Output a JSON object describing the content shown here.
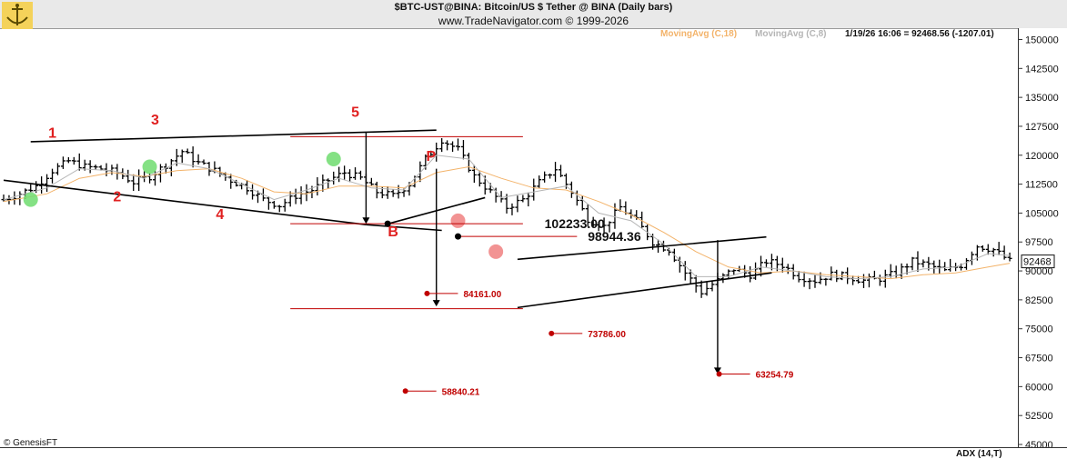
{
  "header": {
    "title": "$BTC-UST@BINA:  Bitcoin/US $ Tether @ BINA  (Daily bars)",
    "subtitle": "www.TradeNavigator.com © 1999-2026"
  },
  "legend": {
    "ma18": "MovingAvg (C,18)",
    "ma8": "MovingAvg (C,8)",
    "last_info": "1/19/26 16:06 = 92468.56 (-1207.01)"
  },
  "footer": {
    "copyright": "© GenesisFT",
    "indicator": "ADX (14,T)"
  },
  "colors": {
    "price_bars": "#000000",
    "ma18": "#f3b36a",
    "ma8": "#b5b5b5",
    "targets": "#c00000",
    "wave_labels": "#e02020",
    "buy_dot": "#6fdc6f",
    "sell_dot": "#f08080"
  },
  "chart_data": {
    "type": "ohlc",
    "ylim": [
      45000,
      152000
    ],
    "y_ticks": [
      "150000",
      "142500",
      "135000",
      "127500",
      "120000",
      "112500",
      "105000",
      "97500",
      "90000",
      "82500",
      "75000",
      "67500",
      "60000",
      "52500",
      "45000"
    ],
    "last_price_label": "92468",
    "price_path": [
      [
        0,
        108500
      ],
      [
        3,
        110000
      ],
      [
        6,
        112000
      ],
      [
        9,
        116000
      ],
      [
        12,
        118500
      ],
      [
        15,
        117000
      ],
      [
        18,
        116500
      ],
      [
        21,
        115500
      ],
      [
        24,
        113000
      ],
      [
        27,
        114500
      ],
      [
        30,
        117500
      ],
      [
        33,
        121000
      ],
      [
        36,
        118000
      ],
      [
        39,
        116000
      ],
      [
        42,
        113500
      ],
      [
        45,
        111500
      ],
      [
        48,
        108500
      ],
      [
        51,
        107000
      ],
      [
        54,
        109500
      ],
      [
        57,
        111000
      ],
      [
        60,
        113500
      ],
      [
        63,
        115500
      ],
      [
        66,
        114000
      ],
      [
        69,
        110500
      ],
      [
        72,
        109500
      ],
      [
        75,
        112500
      ],
      [
        78,
        119000
      ],
      [
        81,
        124000
      ],
      [
        84,
        121500
      ],
      [
        87,
        114500
      ],
      [
        90,
        110500
      ],
      [
        93,
        106500
      ],
      [
        96,
        108500
      ],
      [
        99,
        113000
      ],
      [
        102,
        116500
      ],
      [
        105,
        110500
      ],
      [
        108,
        103500
      ],
      [
        111,
        101500
      ],
      [
        114,
        106500
      ],
      [
        117,
        103000
      ],
      [
        120,
        97500
      ],
      [
        123,
        95500
      ],
      [
        126,
        89500
      ],
      [
        129,
        84500
      ],
      [
        132,
        87500
      ],
      [
        135,
        90500
      ],
      [
        138,
        89000
      ],
      [
        141,
        92500
      ],
      [
        144,
        91500
      ],
      [
        147,
        88500
      ],
      [
        150,
        87500
      ],
      [
        153,
        89000
      ],
      [
        156,
        88500
      ],
      [
        159,
        87500
      ],
      [
        162,
        88000
      ],
      [
        165,
        89500
      ],
      [
        168,
        92500
      ],
      [
        171,
        91500
      ],
      [
        174,
        90000
      ],
      [
        177,
        91500
      ],
      [
        180,
        96500
      ],
      [
        183,
        95500
      ],
      [
        186,
        92500
      ]
    ],
    "ma18_path": [
      [
        0,
        108000
      ],
      [
        8,
        110000
      ],
      [
        14,
        114000
      ],
      [
        20,
        115500
      ],
      [
        26,
        114500
      ],
      [
        32,
        116000
      ],
      [
        38,
        116500
      ],
      [
        44,
        114000
      ],
      [
        50,
        110500
      ],
      [
        56,
        110000
      ],
      [
        62,
        112000
      ],
      [
        68,
        112000
      ],
      [
        74,
        111500
      ],
      [
        80,
        115500
      ],
      [
        86,
        117000
      ],
      [
        92,
        114000
      ],
      [
        98,
        111500
      ],
      [
        104,
        111000
      ],
      [
        110,
        108000
      ],
      [
        116,
        104500
      ],
      [
        122,
        100000
      ],
      [
        128,
        95000
      ],
      [
        134,
        91000
      ],
      [
        140,
        89500
      ],
      [
        146,
        90000
      ],
      [
        152,
        89000
      ],
      [
        158,
        88500
      ],
      [
        164,
        88000
      ],
      [
        170,
        89000
      ],
      [
        176,
        89500
      ],
      [
        182,
        91000
      ],
      [
        186,
        92000
      ]
    ],
    "ma8_path": [
      [
        0,
        108500
      ],
      [
        8,
        111500
      ],
      [
        14,
        116500
      ],
      [
        20,
        116000
      ],
      [
        26,
        114000
      ],
      [
        32,
        118000
      ],
      [
        38,
        116500
      ],
      [
        44,
        112500
      ],
      [
        50,
        108500
      ],
      [
        56,
        111000
      ],
      [
        62,
        114000
      ],
      [
        68,
        111500
      ],
      [
        74,
        111000
      ],
      [
        80,
        120000
      ],
      [
        86,
        119000
      ],
      [
        92,
        109000
      ],
      [
        98,
        110500
      ],
      [
        104,
        112000
      ],
      [
        110,
        105000
      ],
      [
        116,
        103000
      ],
      [
        122,
        97000
      ],
      [
        128,
        88500
      ],
      [
        134,
        88500
      ],
      [
        140,
        91000
      ],
      [
        146,
        90000
      ],
      [
        152,
        88500
      ],
      [
        158,
        88000
      ],
      [
        164,
        88500
      ],
      [
        170,
        90500
      ],
      [
        176,
        91000
      ],
      [
        182,
        94500
      ],
      [
        186,
        94000
      ]
    ],
    "wave_labels": [
      {
        "text": "1",
        "x": 9,
        "y": 124500
      },
      {
        "text": "2",
        "x": 21,
        "y": 108000
      },
      {
        "text": "3",
        "x": 28,
        "y": 128000
      },
      {
        "text": "4",
        "x": 40,
        "y": 103500
      },
      {
        "text": "5",
        "x": 65,
        "y": 130000
      },
      {
        "text": "P",
        "x": 79,
        "y": 118500
      },
      {
        "text": "B",
        "x": 72,
        "y": 99000
      }
    ],
    "levels": [
      {
        "label": "102233.00",
        "x": 100,
        "y": 102233
      },
      {
        "label": "98944.36",
        "x": 108,
        "y": 98944
      }
    ],
    "targets": [
      {
        "label": "84161.00",
        "x": 85,
        "y": 84161
      },
      {
        "label": "73786.00",
        "x": 108,
        "y": 73786
      },
      {
        "label": "63254.79",
        "x": 139,
        "y": 63255
      },
      {
        "label": "58840.21",
        "x": 81,
        "y": 58840
      }
    ],
    "signal_dots": [
      {
        "type": "buy",
        "x": 5,
        "y": 108500
      },
      {
        "type": "buy",
        "x": 27,
        "y": 117000
      },
      {
        "type": "buy",
        "x": 61,
        "y": 119000
      },
      {
        "type": "sell",
        "x": 84,
        "y": 103000
      },
      {
        "type": "sell",
        "x": 91,
        "y": 95000
      }
    ],
    "trendlines": [
      {
        "from": [
          5,
          123500
        ],
        "to": [
          80,
          126500
        ]
      },
      {
        "from": [
          0,
          113500
        ],
        "to": [
          67,
          102000
        ]
      },
      {
        "from": [
          67,
          102000
        ],
        "to": [
          81,
          100500
        ]
      },
      {
        "from": [
          71,
          102200
        ],
        "to": [
          89,
          109000
        ]
      },
      {
        "from": [
          95,
          93000
        ],
        "to": [
          141,
          98800
        ]
      },
      {
        "from": [
          95,
          80500
        ],
        "to": [
          142,
          89500
        ]
      }
    ],
    "hlines": [
      {
        "from": 53,
        "to": 96,
        "y": 124800
      },
      {
        "from": 53,
        "to": 96,
        "y": 102233
      },
      {
        "from": 53,
        "to": 96,
        "y": 80200
      },
      {
        "from": 84,
        "to": 106,
        "y": 98944
      }
    ],
    "arrows": [
      {
        "x": 67,
        "from": 126000,
        "to": 102200
      },
      {
        "x": 80,
        "from": 116500,
        "to": 80800
      },
      {
        "x": 132,
        "from": 98000,
        "to": 63300
      }
    ]
  }
}
